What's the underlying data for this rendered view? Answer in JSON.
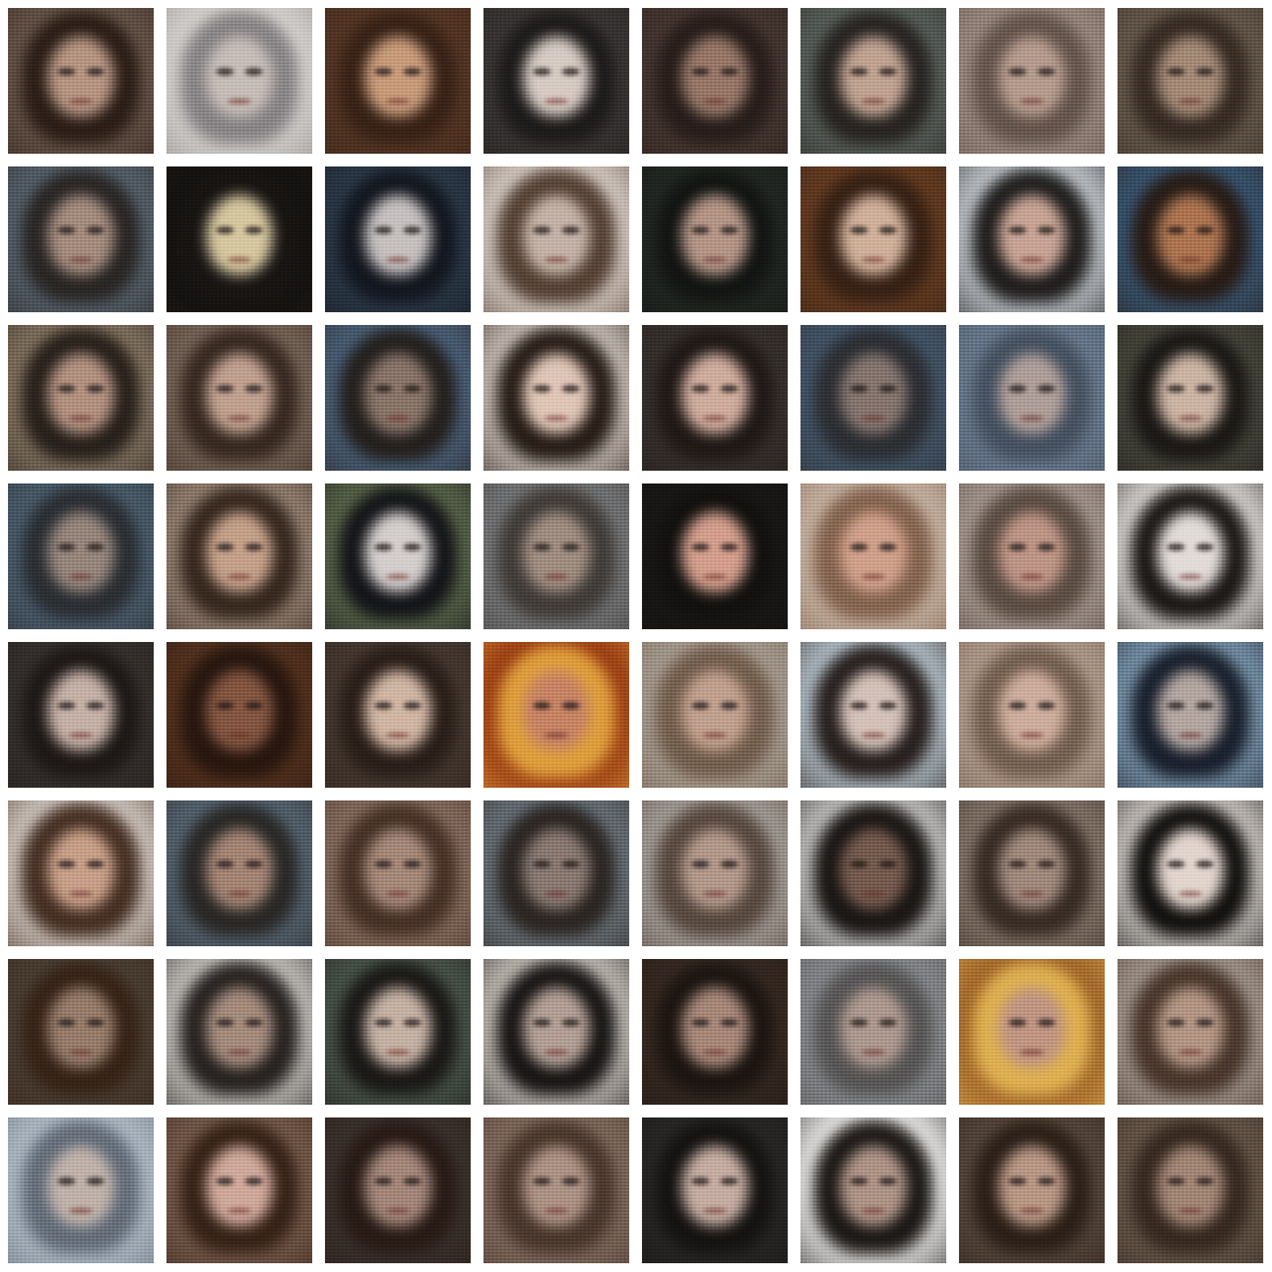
{
  "grid": {
    "rows": 8,
    "columns": 8,
    "tiles": [
      {
        "bg": "#6d5a4e",
        "hair": "#2e1f18",
        "face": "#b99a88"
      },
      {
        "bg": "#d9d6d2",
        "hair": "#8e8a8c",
        "face": "#c9c0bb"
      },
      {
        "bg": "#5a3a28",
        "hair": "#3b2418",
        "face": "#caa080"
      },
      {
        "bg": "#3e3a38",
        "hair": "#1f1c1c",
        "face": "#d8cdc6"
      },
      {
        "bg": "#4a3a34",
        "hair": "#2a1f1c",
        "face": "#9c7d6d"
      },
      {
        "bg": "#5d6660",
        "hair": "#2a2623",
        "face": "#c2a797"
      },
      {
        "bg": "#9e8f86",
        "hair": "#6b5a51",
        "face": "#b8a093"
      },
      {
        "bg": "#6a5e50",
        "hair": "#3a2e26",
        "face": "#a88f7c"
      },
      {
        "bg": "#5a6772",
        "hair": "#2c2826",
        "face": "#a89184"
      },
      {
        "bg": "#161412",
        "hair": "#1a1614",
        "face": "#d7c9a4"
      },
      {
        "bg": "#2e3d4c",
        "hair": "#141821",
        "face": "#c8c3c2"
      },
      {
        "bg": "#d8d0c9",
        "hair": "#5a4538",
        "face": "#c6b5ab"
      },
      {
        "bg": "#242a26",
        "hair": "#141614",
        "face": "#b79a8c"
      },
      {
        "bg": "#6a3f22",
        "hair": "#3a2316",
        "face": "#d1b4a0"
      },
      {
        "bg": "#c7ccd2",
        "hair": "#22201f",
        "face": "#c9a89a"
      },
      {
        "bg": "#3b5a78",
        "hair": "#2a1e18",
        "face": "#b07a55"
      },
      {
        "bg": "#8a7a66",
        "hair": "#2a221c",
        "face": "#b59686"
      },
      {
        "bg": "#7d6a5d",
        "hair": "#3b2b22",
        "face": "#c2a595"
      },
      {
        "bg": "#4f6680",
        "hair": "#26221f",
        "face": "#8f7a6e"
      },
      {
        "bg": "#cdc4bd",
        "hair": "#2a1f19",
        "face": "#e0c8ba"
      },
      {
        "bg": "#3b3431",
        "hair": "#221a17",
        "face": "#d0b0a2"
      },
      {
        "bg": "#465a6e",
        "hair": "#2f3136",
        "face": "#8b7b74"
      },
      {
        "bg": "#6f8094",
        "hair": "#4a5666",
        "face": "#b2a39e"
      },
      {
        "bg": "#4a4a3f",
        "hair": "#1d1a17",
        "face": "#cdb7a8"
      },
      {
        "bg": "#4e6272",
        "hair": "#2d3136",
        "face": "#9b8b82"
      },
      {
        "bg": "#9b8878",
        "hair": "#3a2a20",
        "face": "#c6a58f"
      },
      {
        "bg": "#5e6b4e",
        "hair": "#15161a",
        "face": "#d6d0cf"
      },
      {
        "bg": "#7a7c7e",
        "hair": "#45403c",
        "face": "#a49286"
      },
      {
        "bg": "#1b1917",
        "hair": "#141210",
        "face": "#d4a392"
      },
      {
        "bg": "#c7b7a9",
        "hair": "#8a6a54",
        "face": "#d1a591"
      },
      {
        "bg": "#a89c95",
        "hair": "#615147",
        "face": "#c09a8c"
      },
      {
        "bg": "#dedbd9",
        "hair": "#1e1a18",
        "face": "#e3ddda"
      },
      {
        "bg": "#3a3431",
        "hair": "#1f1a17",
        "face": "#c7b4ab"
      },
      {
        "bg": "#5a3520",
        "hair": "#2a1810",
        "face": "#8a5a44"
      },
      {
        "bg": "#4a3d34",
        "hair": "#2c201a",
        "face": "#d2b9a8"
      },
      {
        "bg": "#9a3a12",
        "hair": "#e0a440",
        "face": "#c9896a"
      },
      {
        "bg": "#a9a197",
        "hair": "#7a6452",
        "face": "#c3a594"
      },
      {
        "bg": "#b8c4cc",
        "hair": "#2a2220",
        "face": "#d5c4bc"
      },
      {
        "bg": "#b29f92",
        "hair": "#7b6656",
        "face": "#cfb1a2"
      },
      {
        "bg": "#7f9bb0",
        "hair": "#1b2230",
        "face": "#b6aaa5"
      },
      {
        "bg": "#d3ccc6",
        "hair": "#4a3225",
        "face": "#c9a48e"
      },
      {
        "bg": "#596a78",
        "hair": "#2c2a28",
        "face": "#a88a7a"
      },
      {
        "bg": "#8c7263",
        "hair": "#4a3428",
        "face": "#a98e7f"
      },
      {
        "bg": "#6e7880",
        "hair": "#2e2824",
        "face": "#8f7f77"
      },
      {
        "bg": "#a7a29d",
        "hair": "#5d4d43",
        "face": "#b59d90"
      },
      {
        "bg": "#c8c7c6",
        "hair": "#1c1816",
        "face": "#7b5f52"
      },
      {
        "bg": "#8a7a6e",
        "hair": "#3b2e27",
        "face": "#a48e82"
      },
      {
        "bg": "#cfcac6",
        "hair": "#141210",
        "face": "#e3d7d0"
      },
      {
        "bg": "#4e4236",
        "hair": "#3a2518",
        "face": "#9c8270"
      },
      {
        "bg": "#c8c6c2",
        "hair": "#2a2522",
        "face": "#a89082"
      },
      {
        "bg": "#4d5a4e",
        "hair": "#1c1a18",
        "face": "#c7b4a8"
      },
      {
        "bg": "#c8c2bc",
        "hair": "#1a1716",
        "face": "#b5a39a"
      },
      {
        "bg": "#3a2c24",
        "hair": "#1e1612",
        "face": "#ab8d7f"
      },
      {
        "bg": "#8b8e92",
        "hair": "#5c5a5a",
        "face": "#b09d94"
      },
      {
        "bg": "#a1682a",
        "hair": "#e0b456",
        "face": "#c39a88"
      },
      {
        "bg": "#a69b92",
        "hair": "#4e3a2f",
        "face": "#b59a89"
      },
      {
        "bg": "#b4bec8",
        "hair": "#6a7480",
        "face": "#c2b5ae"
      },
      {
        "bg": "#7c6050",
        "hair": "#3a2418",
        "face": "#d0ada0"
      },
      {
        "bg": "#3e342f",
        "hair": "#2a1c17",
        "face": "#a88c80"
      },
      {
        "bg": "#866f62",
        "hair": "#4e3a2f",
        "face": "#b0978a"
      },
      {
        "bg": "#2c2a28",
        "hair": "#161412",
        "face": "#c7b0a6"
      },
      {
        "bg": "#f1f0ef",
        "hair": "#1e1a17",
        "face": "#b1988c"
      },
      {
        "bg": "#5a4b40",
        "hair": "#2e2119",
        "face": "#bb9c8a"
      },
      {
        "bg": "#6a5a4c",
        "hair": "#3a2b22",
        "face": "#a68b7b"
      }
    ]
  }
}
